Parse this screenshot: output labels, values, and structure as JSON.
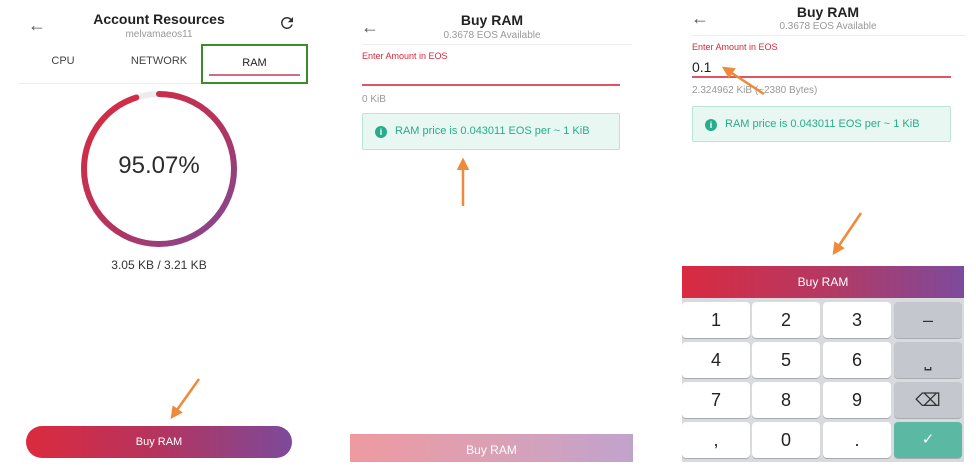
{
  "account": {
    "title": "Account Resources",
    "account_name": "melvamaeos11",
    "tabs": [
      {
        "label": "CPU",
        "active": false
      },
      {
        "label": "NETWORK",
        "active": false
      },
      {
        "label": "RAM",
        "active": true
      }
    ],
    "ram_percent": 95.07,
    "ram_percent_label": "95.07%",
    "usage": "3.05 KB / 3.21 KB",
    "buy_button": "Buy RAM",
    "icons": {
      "back": "back-arrow-icon",
      "refresh": "refresh-icon"
    },
    "colors": {
      "ring_start": "#dc2a3e",
      "ring_end": "#7c4a9a",
      "tab_highlight": "#3d8a2a"
    }
  },
  "buy_empty": {
    "title": "Buy RAM",
    "available": "0.3678 EOS Available",
    "input_label": "Enter Amount in EOS",
    "input_value": "",
    "kib_hint": "0 KiB",
    "price_info": "RAM price is 0.043011 EOS per ~ 1 KiB",
    "buy_button": "Buy RAM"
  },
  "buy_filled": {
    "title": "Buy RAM",
    "available": "0.3678 EOS Available",
    "input_label": "Enter Amount in EOS",
    "input_value": "0.1",
    "kib_hint": "2.324962 KiB (~2380 Bytes)",
    "price_info": "RAM price is 0.043011 EOS per ~ 1 KiB",
    "buy_button": "Buy RAM",
    "keypad": {
      "k1": "1",
      "k2": "2",
      "k3": "3",
      "minus": "–",
      "k4": "4",
      "k5": "5",
      "k6": "6",
      "space": "⎵",
      "k7": "7",
      "k8": "8",
      "k9": "9",
      "backspace": "⌫",
      "comma": ",",
      "k0": "0",
      "dot": ".",
      "done": "✓"
    }
  }
}
